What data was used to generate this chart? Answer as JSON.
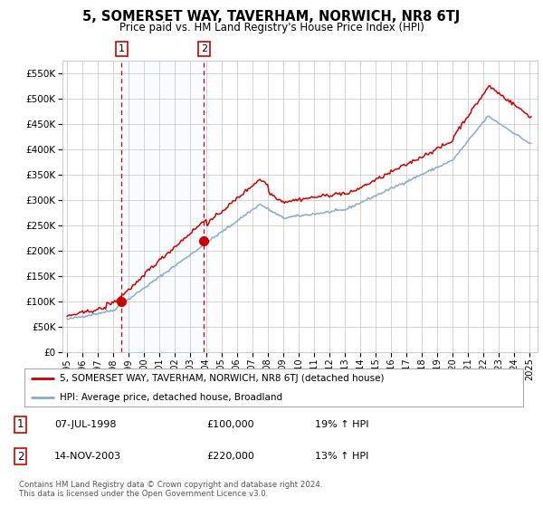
{
  "title": "5, SOMERSET WAY, TAVERHAM, NORWICH, NR8 6TJ",
  "subtitle": "Price paid vs. HM Land Registry's House Price Index (HPI)",
  "legend_label_red": "5, SOMERSET WAY, TAVERHAM, NORWICH, NR8 6TJ (detached house)",
  "legend_label_blue": "HPI: Average price, detached house, Broadland",
  "footnote": "Contains HM Land Registry data © Crown copyright and database right 2024.\nThis data is licensed under the Open Government Licence v3.0.",
  "sale1_date": "07-JUL-1998",
  "sale1_price": "£100,000",
  "sale1_hpi": "19% ↑ HPI",
  "sale2_date": "14-NOV-2003",
  "sale2_price": "£220,000",
  "sale2_hpi": "13% ↑ HPI",
  "sale1_year": 1998.52,
  "sale1_value": 100000,
  "sale2_year": 2003.87,
  "sale2_value": 220000,
  "ylim": [
    0,
    575000
  ],
  "xlim_start": 1994.7,
  "xlim_end": 2025.5,
  "red_color": "#cc0000",
  "blue_color": "#88aacc",
  "shade_color": "#ddeeff",
  "grid_color": "#cccccc",
  "bg_color": "#ffffff"
}
